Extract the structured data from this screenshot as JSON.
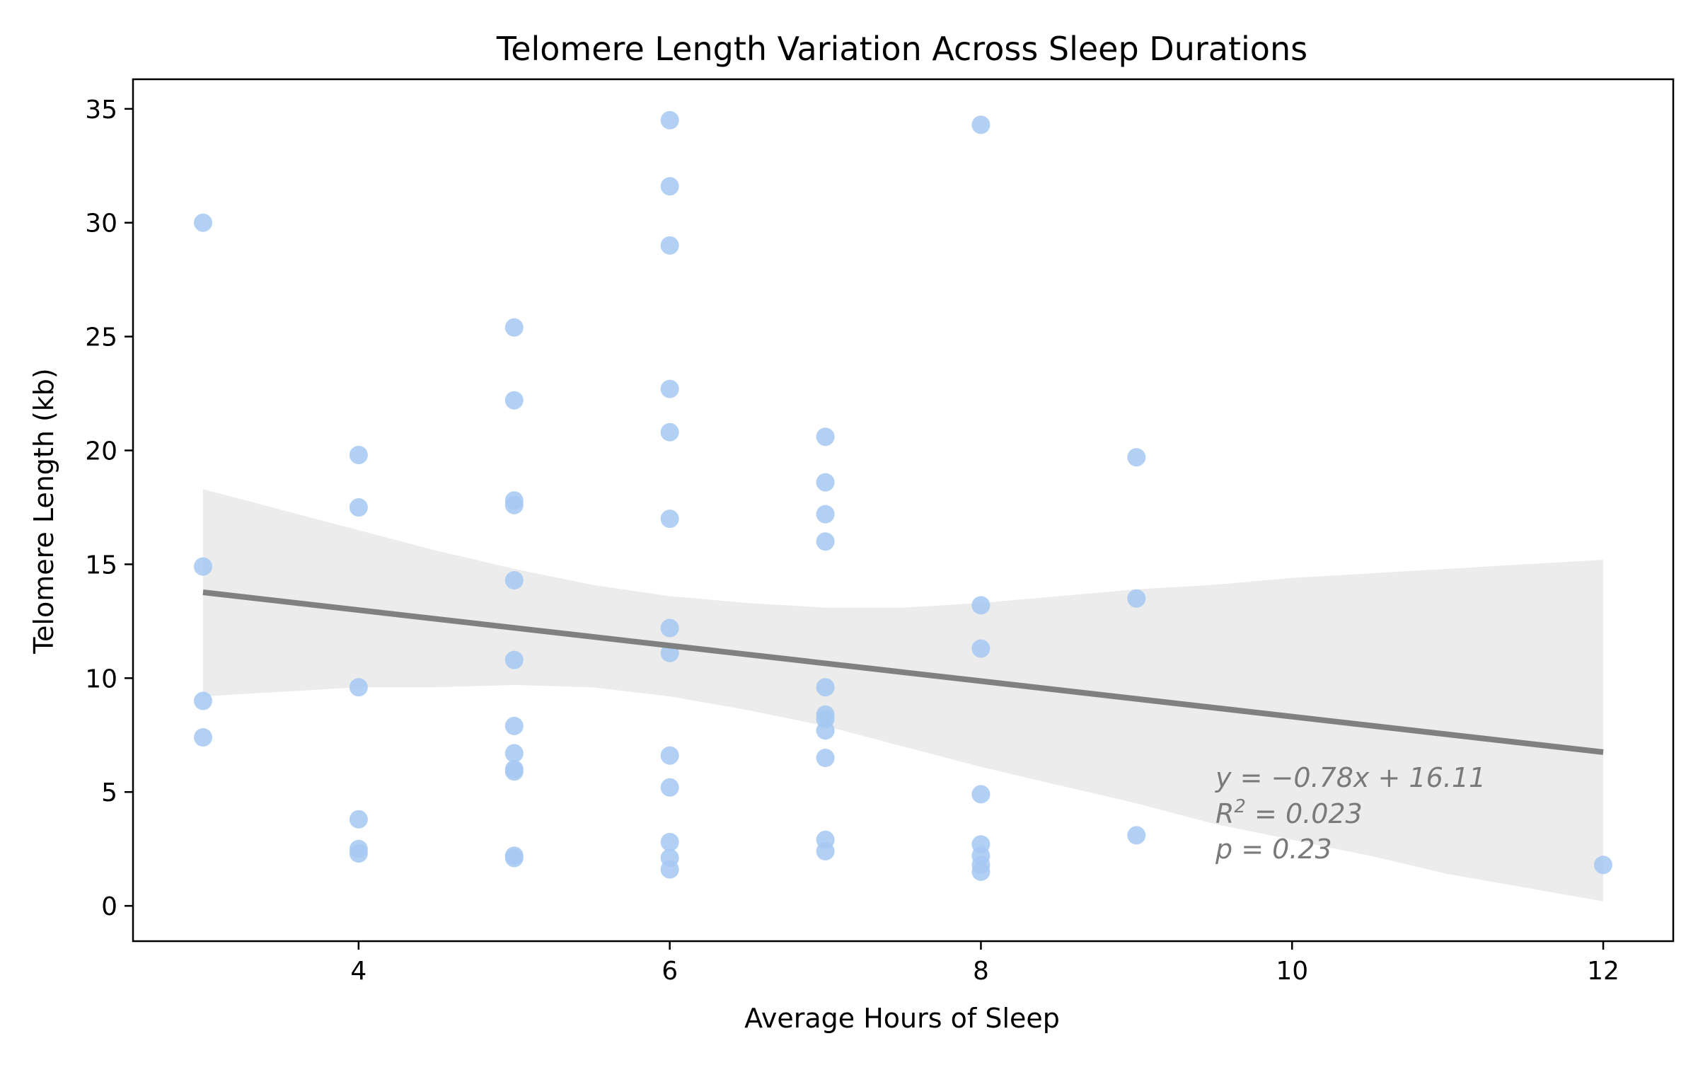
{
  "chart_data": {
    "type": "scatter",
    "title": "Telomere Length Variation Across Sleep Durations",
    "xlabel": "Average Hours of Sleep",
    "ylabel": "Telomere Length (kb)",
    "xlim": [
      2.55,
      12.45
    ],
    "ylim": [
      -1.55,
      36.3
    ],
    "xticks": [
      4,
      6,
      8,
      10,
      12
    ],
    "yticks": [
      0,
      5,
      10,
      15,
      20,
      25,
      30,
      35
    ],
    "grid": false,
    "legend": "none",
    "colors": {
      "points": "#a5c8f2",
      "regression_line": "#808080",
      "confidence_band": "#e6e6e6",
      "annotation": "#7a7a7a"
    },
    "points": [
      {
        "x": 3,
        "y": 30.0
      },
      {
        "x": 3,
        "y": 14.9
      },
      {
        "x": 3,
        "y": 9.0
      },
      {
        "x": 3,
        "y": 7.4
      },
      {
        "x": 4,
        "y": 19.8
      },
      {
        "x": 4,
        "y": 17.5
      },
      {
        "x": 4,
        "y": 9.6
      },
      {
        "x": 4,
        "y": 3.8
      },
      {
        "x": 4,
        "y": 2.5
      },
      {
        "x": 4,
        "y": 2.3
      },
      {
        "x": 5,
        "y": 25.4
      },
      {
        "x": 5,
        "y": 22.2
      },
      {
        "x": 5,
        "y": 17.8
      },
      {
        "x": 5,
        "y": 17.6
      },
      {
        "x": 5,
        "y": 14.3
      },
      {
        "x": 5,
        "y": 10.8
      },
      {
        "x": 5,
        "y": 7.9
      },
      {
        "x": 5,
        "y": 6.7
      },
      {
        "x": 5,
        "y": 6.0
      },
      {
        "x": 5,
        "y": 5.9
      },
      {
        "x": 5,
        "y": 2.2
      },
      {
        "x": 5,
        "y": 2.1
      },
      {
        "x": 6,
        "y": 34.5
      },
      {
        "x": 6,
        "y": 31.6
      },
      {
        "x": 6,
        "y": 29.0
      },
      {
        "x": 6,
        "y": 22.7
      },
      {
        "x": 6,
        "y": 20.8
      },
      {
        "x": 6,
        "y": 17.0
      },
      {
        "x": 6,
        "y": 12.2
      },
      {
        "x": 6,
        "y": 11.1
      },
      {
        "x": 6,
        "y": 6.6
      },
      {
        "x": 6,
        "y": 5.2
      },
      {
        "x": 6,
        "y": 2.8
      },
      {
        "x": 6,
        "y": 2.1
      },
      {
        "x": 6,
        "y": 1.6
      },
      {
        "x": 7,
        "y": 20.6
      },
      {
        "x": 7,
        "y": 18.6
      },
      {
        "x": 7,
        "y": 17.2
      },
      {
        "x": 7,
        "y": 16.0
      },
      {
        "x": 7,
        "y": 9.6
      },
      {
        "x": 7,
        "y": 8.4
      },
      {
        "x": 7,
        "y": 8.2
      },
      {
        "x": 7,
        "y": 7.7
      },
      {
        "x": 7,
        "y": 6.5
      },
      {
        "x": 7,
        "y": 2.9
      },
      {
        "x": 7,
        "y": 2.4
      },
      {
        "x": 8,
        "y": 34.3
      },
      {
        "x": 8,
        "y": 13.2
      },
      {
        "x": 8,
        "y": 11.3
      },
      {
        "x": 8,
        "y": 4.9
      },
      {
        "x": 8,
        "y": 2.7
      },
      {
        "x": 8,
        "y": 2.2
      },
      {
        "x": 8,
        "y": 1.8
      },
      {
        "x": 8,
        "y": 1.5
      },
      {
        "x": 9,
        "y": 19.7
      },
      {
        "x": 9,
        "y": 13.5
      },
      {
        "x": 9,
        "y": 3.1
      },
      {
        "x": 12,
        "y": 1.8
      }
    ],
    "regression": {
      "slope": -0.78,
      "intercept": 16.11,
      "x_range": [
        3,
        12
      ]
    },
    "confidence_band": {
      "x": [
        3,
        3.5,
        4,
        4.5,
        5,
        5.5,
        6,
        6.5,
        7,
        7.5,
        8,
        8.5,
        9,
        9.5,
        10,
        10.5,
        11,
        11.5,
        12
      ],
      "upper": [
        18.3,
        17.4,
        16.5,
        15.6,
        14.8,
        14.1,
        13.6,
        13.3,
        13.1,
        13.1,
        13.3,
        13.6,
        13.9,
        14.1,
        14.4,
        14.6,
        14.8,
        15.0,
        15.2
      ],
      "lower": [
        9.2,
        9.4,
        9.6,
        9.6,
        9.7,
        9.6,
        9.2,
        8.6,
        7.9,
        7.0,
        6.1,
        5.3,
        4.5,
        3.6,
        2.9,
        2.2,
        1.4,
        0.8,
        0.2
      ]
    },
    "annotation": {
      "equation": "y = −0.78x + 16.11",
      "r2_symbol": "R",
      "r2_exponent": "2",
      "r2_value": " = 0.023",
      "p_value": "p = 0.23"
    }
  }
}
